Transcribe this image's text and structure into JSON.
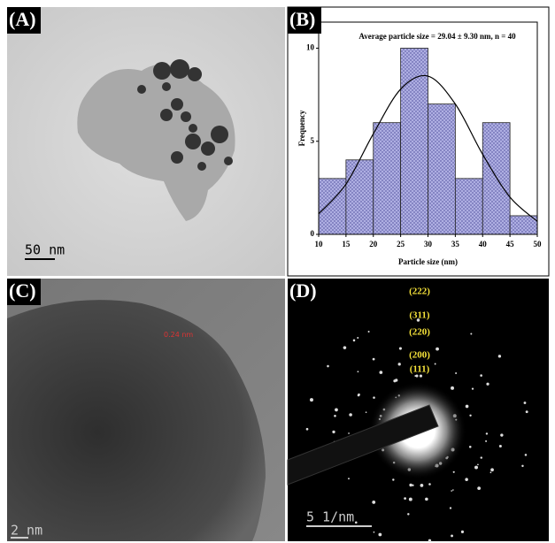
{
  "panels": [
    {
      "label": "(A)",
      "scale_bar": "50 nm"
    },
    {
      "label": "(B)"
    },
    {
      "label": "(C)",
      "scale_bar": "2 nm",
      "annotation": "0.24 nm"
    },
    {
      "label": "(D)",
      "scale_bar": "5 1/nm",
      "rings": [
        "(222)",
        "(311)",
        "(220)",
        "(200)",
        "(111)"
      ]
    }
  ],
  "chart_data": {
    "type": "histogram",
    "title": "Average particle size = 29.04 ± 9.30 nm, n = 40",
    "x_label": "Particle size (nm)",
    "y_label": "Frequency",
    "bins": [
      10,
      15,
      20,
      25,
      30,
      35,
      40,
      45,
      50
    ],
    "values": [
      3,
      4,
      6,
      10,
      7,
      3,
      6,
      1
    ],
    "color": "#9c9cd6",
    "curve": {
      "x": [
        10,
        15,
        20,
        25,
        30,
        35,
        40,
        45,
        50
      ],
      "values": [
        1.1,
        2.7,
        5.4,
        7.8,
        8.5,
        7.0,
        4.3,
        2.0,
        0.7
      ],
      "color": "#000000"
    },
    "xlim": [
      10,
      50
    ],
    "xticks": [
      10,
      15,
      20,
      25,
      30,
      35,
      40,
      45,
      50
    ],
    "ylim": [
      0,
      11.4
    ],
    "yticks": [
      0,
      5,
      10
    ]
  }
}
